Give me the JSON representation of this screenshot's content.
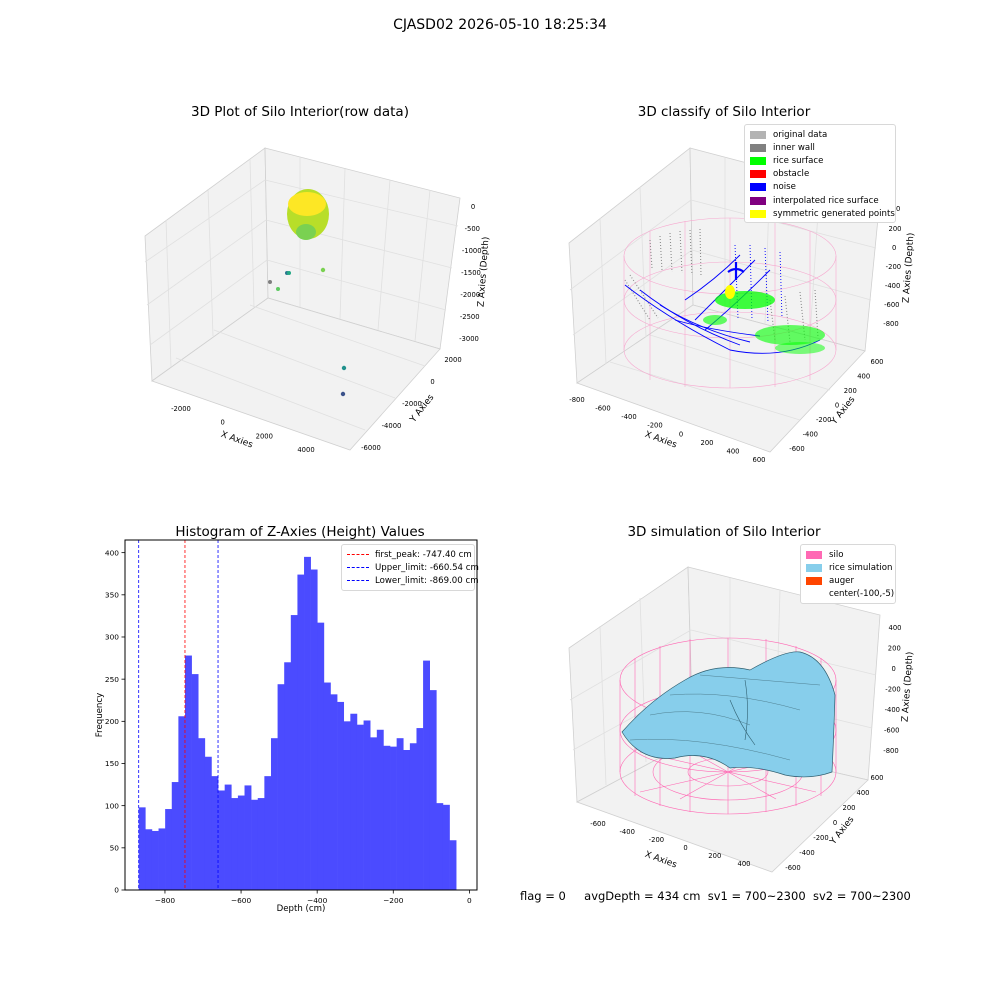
{
  "figure_title": "CJASD02 2026-05-10 18:25:34",
  "panels": {
    "raw": {
      "title": "3D Plot of Silo Interior(row data)",
      "xlabel": "X Axies",
      "ylabel": "Y Axies",
      "zlabel": "Z Axies (Depth)",
      "xticks": [
        "-2000",
        "0",
        "2000",
        "4000"
      ],
      "yticks": [
        "2000",
        "0",
        "-2000",
        "-4000",
        "-6000"
      ],
      "zticks": [
        "0",
        "-500",
        "-1000",
        "-1500",
        "-2000",
        "-2500",
        "-3000"
      ]
    },
    "classify": {
      "title": "3D classify of Silo Interior",
      "xlabel": "X Axies",
      "ylabel": "Y Axies",
      "zlabel": "Z Axies (Depth)",
      "xticks": [
        "-800",
        "-600",
        "-400",
        "-200",
        "0",
        "200",
        "400",
        "600"
      ],
      "yticks": [
        "600",
        "400",
        "200",
        "0",
        "-200",
        "-400",
        "-600"
      ],
      "zticks": [
        "200",
        "0",
        "-200",
        "-400",
        "-600",
        "-800"
      ],
      "partial_ztick": "00",
      "legend": [
        {
          "label": "original data",
          "color": "#b3b3b3"
        },
        {
          "label": "inner wall",
          "color": "#808080"
        },
        {
          "label": "rice surface",
          "color": "#00ff00"
        },
        {
          "label": "obstacle",
          "color": "#ff0000"
        },
        {
          "label": "noise",
          "color": "#0000ff"
        },
        {
          "label": "interpolated rice surface",
          "color": "#800080"
        },
        {
          "label": "symmetric generated points",
          "color": "#ffff00"
        }
      ]
    },
    "histogram": {
      "title": "Histogram of Z-Axies (Height) Values",
      "xlabel": "Depth (cm)",
      "ylabel": "Frequency",
      "xticks": [
        "−800",
        "−600",
        "−400",
        "−200",
        "0"
      ],
      "yticks": [
        "0",
        "50",
        "100",
        "150",
        "200",
        "250",
        "300",
        "350",
        "400"
      ],
      "legend": [
        {
          "label": "first_peak: -747.40 cm",
          "color": "#ff0000"
        },
        {
          "label": "Upper_limit: -660.54 cm",
          "color": "#0000ff"
        },
        {
          "label": "Lower_limit: -869.00 cm",
          "color": "#0000ff"
        }
      ]
    },
    "simulation": {
      "title": "3D simulation of Silo Interior",
      "xlabel": "X Axies",
      "ylabel": "Y Axies",
      "zlabel": "Z Axies (Depth)",
      "xticks": [
        "-600",
        "-400",
        "-200",
        "0",
        "200",
        "400"
      ],
      "yticks": [
        "600",
        "400",
        "200",
        "0",
        "-200",
        "-400",
        "-600"
      ],
      "zticks": [
        "400",
        "200",
        "0",
        "-200",
        "-400",
        "-600",
        "-800"
      ],
      "legend": [
        {
          "label": "silo",
          "color": "#ff69b4"
        },
        {
          "label": "rice simulation",
          "color": "#87ceeb"
        },
        {
          "label": "auger",
          "color": "#ff4500"
        },
        {
          "label": "center(-100,-5)",
          "color": "#ffffff"
        }
      ]
    }
  },
  "footer": {
    "flag": "flag = 0",
    "avg_depth": "avgDepth = 434 cm",
    "sv1": "sv1 = 700~2300",
    "sv2": "sv2 = 700~2300"
  },
  "chart_data": [
    {
      "type": "scatter",
      "title": "3D Plot of Silo Interior(row data)",
      "xlabel": "X Axies",
      "ylabel": "Y Axies",
      "zlabel": "Z Axies (Depth)",
      "colormap": "viridis"
    },
    {
      "type": "scatter",
      "title": "3D classify of Silo Interior",
      "xlabel": "X Axies",
      "ylabel": "Y Axies",
      "zlabel": "Z Axies (Depth)",
      "series": [
        {
          "name": "original data"
        },
        {
          "name": "inner wall"
        },
        {
          "name": "rice surface"
        },
        {
          "name": "obstacle"
        },
        {
          "name": "noise"
        },
        {
          "name": "interpolated rice surface"
        },
        {
          "name": "symmetric generated points"
        }
      ]
    },
    {
      "type": "bar",
      "title": "Histogram of Z-Axies (Height) Values",
      "xlabel": "Depth (cm)",
      "ylabel": "Frequency",
      "xlim": [
        -905,
        20
      ],
      "ylim": [
        0,
        415
      ],
      "bin_start": -869,
      "bin_width": 17.38,
      "values": [
        98,
        72,
        70,
        73,
        96,
        128,
        206,
        278,
        256,
        180,
        158,
        135,
        118,
        125,
        109,
        112,
        124,
        107,
        109,
        135,
        180,
        244,
        270,
        326,
        374,
        395,
        380,
        317,
        246,
        232,
        223,
        200,
        209,
        196,
        201,
        181,
        190,
        171,
        170,
        180,
        166,
        174,
        192,
        272,
        237,
        103,
        101,
        59
      ],
      "vlines": [
        {
          "name": "first_peak: -747.40 cm",
          "x": -747.4,
          "color": "#ff0000"
        },
        {
          "name": "Upper_limit: -660.54 cm",
          "x": -660.54,
          "color": "#0000ff"
        },
        {
          "name": "Lower_limit: -869.00 cm",
          "x": -869.0,
          "color": "#0000ff"
        }
      ]
    },
    {
      "type": "area",
      "title": "3D simulation of Silo Interior",
      "xlabel": "X Axies",
      "ylabel": "Y Axies",
      "zlabel": "Z Axies (Depth)",
      "series": [
        {
          "name": "silo"
        },
        {
          "name": "rice simulation"
        },
        {
          "name": "auger"
        },
        {
          "name": "center(-100,-5)"
        }
      ]
    }
  ]
}
